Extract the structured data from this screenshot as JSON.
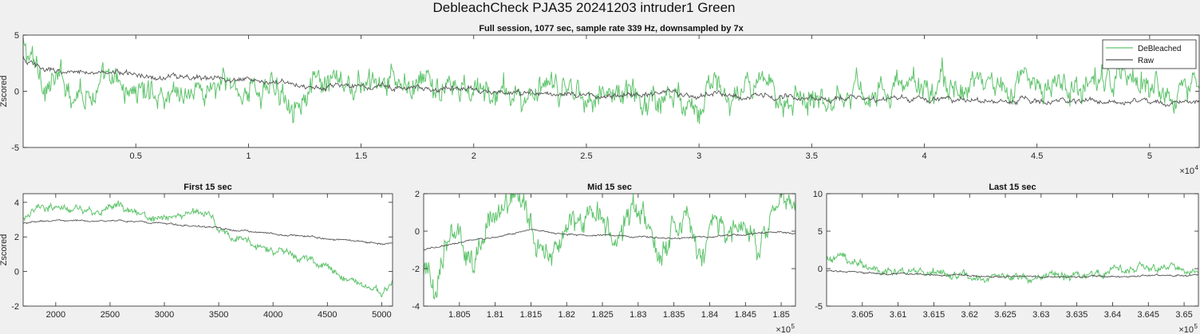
{
  "figure": {
    "suptitle": "DebleachCheck PJA35 20241203  intruder1 Green",
    "colors": {
      "debleached": "#5fc46c",
      "raw": "#555555",
      "axes": "#262626",
      "background": "#f0f0f0",
      "plot_bg": "#ffffff"
    }
  },
  "chart_data": [
    {
      "id": "full",
      "type": "line",
      "title": "Full session, 1077 sec, sample rate 339 Hz, downsampled by 7x",
      "xlabel": "",
      "ylabel": "Zscored",
      "xlim": [
        0,
        52200
      ],
      "ylim": [
        -5,
        5
      ],
      "xticks": [
        5000,
        10000,
        15000,
        20000,
        25000,
        30000,
        35000,
        40000,
        45000,
        50000
      ],
      "xtick_labels": [
        "0.5",
        "1",
        "1.5",
        "2",
        "2.5",
        "3",
        "3.5",
        "4",
        "4.5",
        "5"
      ],
      "x_exponent": "×10^4",
      "x_exponent_base": "×10",
      "x_exponent_power": "4",
      "yticks": [
        -5,
        0,
        5
      ],
      "ytick_labels": [
        "-5",
        "0",
        "5"
      ],
      "legend": {
        "placement": "top-right",
        "entries": [
          "DeBleached",
          "Raw"
        ]
      },
      "series": [
        {
          "name": "DeBleached",
          "x": [
            0,
            200,
            1000,
            2000,
            3000,
            5000,
            7500,
            10000,
            12500,
            15000,
            17500,
            20000,
            22500,
            25000,
            27500,
            30000,
            32500,
            35000,
            37500,
            40000,
            42500,
            45000,
            47500,
            50000,
            52200
          ],
          "y": [
            4.0,
            3.0,
            1.0,
            0.5,
            0.3,
            0.0,
            0.2,
            0.3,
            0.0,
            0.2,
            0.5,
            -0.2,
            -0.5,
            0.2,
            -0.5,
            -0.2,
            -0.3,
            0.0,
            0.2,
            0.3,
            0.5,
            0.6,
            0.5,
            0.6,
            0.8
          ]
        },
        {
          "name": "Raw",
          "x": [
            0,
            200,
            1000,
            2000,
            3000,
            5000,
            7500,
            10000,
            12500,
            15000,
            17500,
            20000,
            22500,
            25000,
            27500,
            30000,
            32500,
            35000,
            37500,
            40000,
            42500,
            45000,
            47500,
            50000,
            52200
          ],
          "y": [
            3.0,
            2.5,
            2.0,
            1.7,
            1.8,
            1.5,
            1.2,
            1.0,
            0.6,
            0.5,
            0.3,
            0.0,
            -0.2,
            -0.4,
            -0.3,
            -0.3,
            -0.5,
            -0.5,
            -0.6,
            -0.7,
            -0.8,
            -0.8,
            -0.9,
            -0.9,
            -0.8
          ]
        }
      ]
    },
    {
      "id": "first",
      "type": "line",
      "title": "First 15 sec",
      "xlabel": "",
      "ylabel": "Zscored",
      "xlim": [
        1700,
        5100
      ],
      "ylim": [
        -2,
        4.5
      ],
      "xticks": [
        2000,
        2500,
        3000,
        3500,
        4000,
        4500,
        5000
      ],
      "xtick_labels": [
        "2000",
        "2500",
        "3000",
        "3500",
        "4000",
        "4500",
        "5000"
      ],
      "yticks": [
        -2,
        0,
        2,
        4
      ],
      "ytick_labels": [
        "-2",
        "0",
        "2",
        "4"
      ],
      "series": [
        {
          "name": "DeBleached",
          "x": [
            1700,
            1850,
            2000,
            2200,
            2400,
            2600,
            2800,
            3000,
            3200,
            3400,
            3500,
            3600,
            3800,
            4000,
            4200,
            4400,
            4600,
            4800,
            5000,
            5100
          ],
          "y": [
            3.2,
            3.6,
            3.8,
            3.5,
            3.3,
            3.8,
            3.3,
            3.0,
            3.3,
            3.4,
            2.5,
            2.0,
            1.6,
            1.2,
            1.0,
            0.4,
            -0.2,
            -0.8,
            -1.2,
            -0.6
          ]
        },
        {
          "name": "Raw",
          "x": [
            1700,
            2000,
            2500,
            3000,
            3500,
            4000,
            4500,
            5000,
            5100
          ],
          "y": [
            2.8,
            2.95,
            2.95,
            2.8,
            2.5,
            2.2,
            1.9,
            1.6,
            1.7
          ]
        }
      ]
    },
    {
      "id": "mid",
      "type": "line",
      "title": "Mid 15 sec",
      "xlabel": "",
      "ylabel": "",
      "xlim": [
        180000,
        185200
      ],
      "ylim": [
        -4,
        2
      ],
      "xticks": [
        180500,
        181000,
        181500,
        182000,
        182500,
        183000,
        183500,
        184000,
        184500,
        185000
      ],
      "xtick_labels": [
        "1.805",
        "1.81",
        "1.815",
        "1.82",
        "1.825",
        "1.83",
        "1.835",
        "1.84",
        "1.845",
        "1.85"
      ],
      "x_exponent": "×10^5",
      "x_exponent_base": "×10",
      "x_exponent_power": "5",
      "yticks": [
        -4,
        -2,
        0,
        2
      ],
      "ytick_labels": [
        "-4",
        "-2",
        "0",
        "2"
      ],
      "series": [
        {
          "name": "DeBleached",
          "x": [
            180000,
            180150,
            180300,
            180500,
            180700,
            180900,
            181100,
            181300,
            181500,
            181700,
            181900,
            182100,
            182300,
            182500,
            182700,
            182900,
            183100,
            183300,
            183500,
            183700,
            183900,
            184100,
            184300,
            184500,
            184700,
            184900,
            185100,
            185200
          ],
          "y": [
            -2.2,
            -3.0,
            -0.5,
            -0.3,
            -1.5,
            0.5,
            1.0,
            1.8,
            0.5,
            -1.2,
            -0.5,
            0.3,
            1.2,
            0.5,
            -1.0,
            0.3,
            0.6,
            -1.2,
            0.4,
            0.6,
            -1.0,
            0.6,
            -0.5,
            0.5,
            -1.0,
            1.0,
            1.5,
            0.8
          ]
        },
        {
          "name": "Raw",
          "x": [
            180000,
            180500,
            181000,
            181500,
            182000,
            182500,
            183000,
            183500,
            184000,
            184500,
            185000,
            185200
          ],
          "y": [
            -1.0,
            -0.6,
            -0.3,
            0.1,
            -0.2,
            -0.2,
            -0.3,
            -0.4,
            -0.3,
            -0.2,
            0.0,
            -0.1
          ]
        }
      ]
    },
    {
      "id": "last",
      "type": "line",
      "title": "Last 15 sec",
      "xlabel": "",
      "ylabel": "",
      "xlim": [
        360000,
        365200
      ],
      "ylim": [
        -5,
        10
      ],
      "xticks": [
        360500,
        361000,
        361500,
        362000,
        362500,
        363000,
        363500,
        364000,
        364500,
        365000
      ],
      "xtick_labels": [
        "3.605",
        "3.61",
        "3.615",
        "3.62",
        "3.625",
        "3.63",
        "3.635",
        "3.64",
        "3.645",
        "3.65"
      ],
      "x_exponent": "×10^5",
      "x_exponent_base": "×10",
      "x_exponent_power": "5",
      "yticks": [
        -5,
        0,
        5,
        10
      ],
      "ytick_labels": [
        "-5",
        "0",
        "5",
        "10"
      ],
      "series": [
        {
          "name": "DeBleached",
          "x": [
            360000,
            360200,
            360400,
            360600,
            361000,
            361500,
            362000,
            362500,
            363000,
            363500,
            364000,
            364500,
            365000,
            365200
          ],
          "y": [
            1.2,
            1.5,
            1.2,
            0.0,
            -0.5,
            -0.8,
            -1.0,
            -0.8,
            -1.0,
            -0.8,
            -0.5,
            0.3,
            0.0,
            -0.2
          ]
        },
        {
          "name": "Raw",
          "x": [
            360000,
            361000,
            362000,
            363000,
            364000,
            365000,
            365200
          ],
          "y": [
            -0.3,
            -0.7,
            -1.0,
            -1.1,
            -1.0,
            -0.9,
            -0.8
          ]
        }
      ]
    }
  ]
}
